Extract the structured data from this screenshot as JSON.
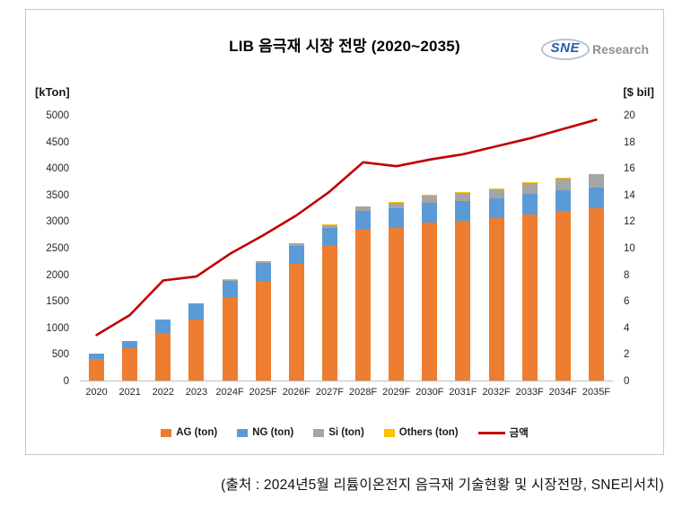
{
  "header": {
    "title": "LIB 음극재 시장 전망 (2020~2035)",
    "logo": {
      "sne": "SNE",
      "research": "Research"
    }
  },
  "caption": "(출처 : 2024년5월 리튬이온전지 음극재 기술현황 및 시장전망, SNE리서치)",
  "chart_data": {
    "type": "combo",
    "bar_type": "stacked",
    "title": "LIB 음극재 시장 전망 (2020~2035)",
    "grid": "off",
    "legend_position": "bottom",
    "categories": [
      "2020",
      "2021",
      "2022",
      "2023",
      "2024F",
      "2025F",
      "2026F",
      "2027F",
      "2028F",
      "2029F",
      "2030F",
      "2031F",
      "2032F",
      "2033F",
      "2034F",
      "2035F"
    ],
    "bar_series": [
      {
        "name": "AG (ton)",
        "color": "#ED7D31",
        "values": [
          400,
          600,
          900,
          1150,
          1550,
          1870,
          2200,
          2550,
          2830,
          2870,
          2970,
          3000,
          3050,
          3130,
          3200,
          3250
        ]
      },
      {
        "name": "NG (ton)",
        "color": "#5B9BD5",
        "values": [
          100,
          150,
          250,
          300,
          330,
          350,
          330,
          320,
          370,
          380,
          380,
          380,
          380,
          390,
          380,
          390
        ]
      },
      {
        "name": "Si (ton)",
        "color": "#A5A5A5",
        "values": [
          0,
          0,
          0,
          0,
          20,
          30,
          50,
          60,
          80,
          100,
          130,
          150,
          170,
          200,
          220,
          240
        ]
      },
      {
        "name": "Others (ton)",
        "color": "#FFC000",
        "values": [
          0,
          0,
          0,
          0,
          5,
          5,
          5,
          5,
          5,
          10,
          10,
          10,
          10,
          10,
          10,
          10
        ]
      }
    ],
    "line_series": {
      "name": "금액",
      "color": "#C00000",
      "axis": "right",
      "values": [
        3.5,
        5.0,
        7.6,
        7.9,
        9.6,
        11.0,
        12.5,
        14.3,
        16.5,
        16.2,
        16.7,
        17.1,
        17.7,
        18.3,
        19.0,
        19.7
      ]
    },
    "left_axis": {
      "unit": "[kTon]",
      "min": 0,
      "max": 5000,
      "step": 500
    },
    "right_axis": {
      "unit": "[$ bil]",
      "min": 0,
      "max": 20,
      "step": 2
    }
  }
}
